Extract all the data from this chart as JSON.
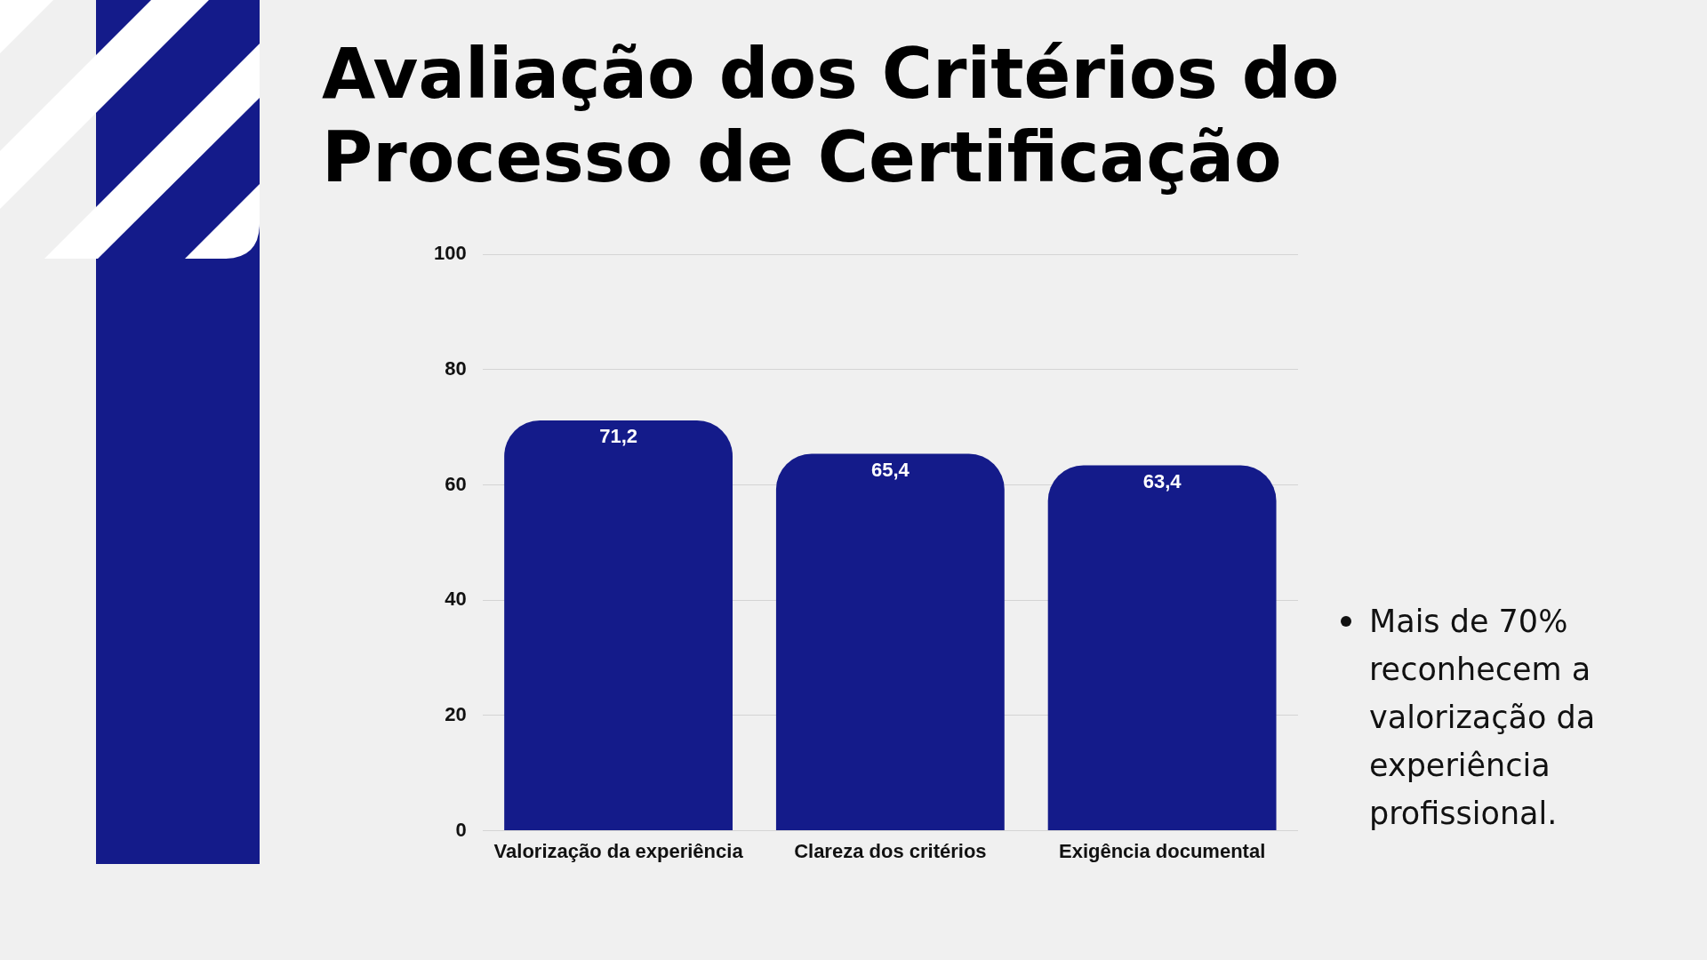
{
  "chart_data": {
    "type": "bar",
    "title": "Avaliação dos Critérios do Processo de Certificação",
    "categories": [
      "Valorização da experiência",
      "Clareza dos critérios",
      "Exigência documental"
    ],
    "values": [
      71.2,
      65.4,
      63.4
    ],
    "color": "#141b8a",
    "value_labels": [
      "71,2",
      "65,4",
      "63,4"
    ],
    "ylim": [
      0,
      100
    ],
    "yticks": [
      0,
      20,
      40,
      60,
      80,
      100
    ],
    "grid": "y",
    "legend": false,
    "annotations": [
      "Mais de 70% reconhecem a valorização da experiência profissional."
    ]
  }
}
